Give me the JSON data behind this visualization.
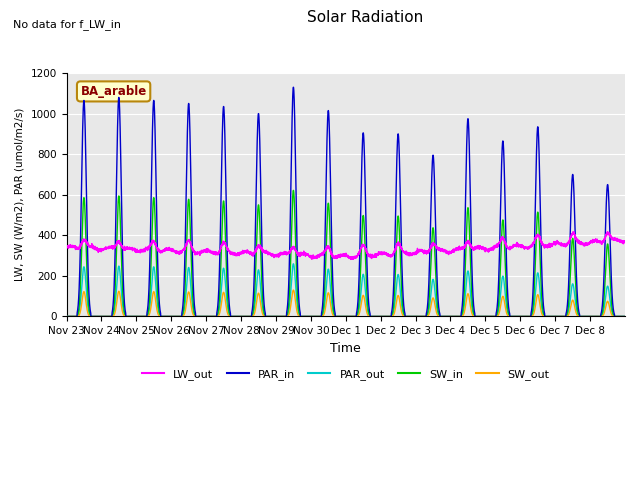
{
  "title": "Solar Radiation",
  "subtitle": "No data for f_LW_in",
  "ylabel": "LW, SW (W/m2), PAR (umol/m2/s)",
  "xlabel": "Time",
  "annotation": "BA_arable",
  "ylim": [
    0,
    1200
  ],
  "background_color": "#e8e8e8",
  "xtick_labels": [
    "Nov 23",
    "Nov 24",
    "Nov 25",
    "Nov 26",
    "Nov 27",
    "Nov 28",
    "Nov 29",
    "Nov 30",
    "Dec 1",
    "Dec 2",
    "Dec 3",
    "Dec 4",
    "Dec 5",
    "Dec 6",
    "Dec 7",
    "Dec 8"
  ],
  "series": {
    "LW_out": {
      "color": "#ff00ff",
      "lw": 1.0
    },
    "PAR_in": {
      "color": "#0000cc",
      "lw": 1.0
    },
    "PAR_out": {
      "color": "#00cccc",
      "lw": 1.0
    },
    "SW_in": {
      "color": "#00cc00",
      "lw": 1.0
    },
    "SW_out": {
      "color": "#ffaa00",
      "lw": 1.0
    }
  },
  "n_days": 16,
  "pts_per_day": 288,
  "par_in_peaks": [
    1065,
    1080,
    1065,
    1050,
    1035,
    1000,
    1130,
    1015,
    905,
    900,
    795,
    975,
    865,
    935,
    700,
    650
  ]
}
